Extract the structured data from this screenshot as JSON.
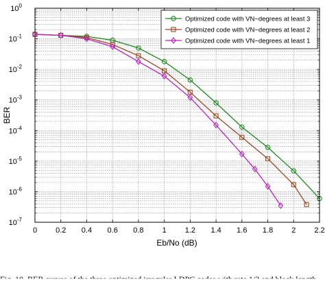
{
  "chart_data": {
    "type": "line",
    "title": "",
    "xlabel": "Eb/No (dB)",
    "ylabel": "BER",
    "xlim": [
      0,
      2.2
    ],
    "ylim": [
      1e-07,
      1
    ],
    "yscale": "log",
    "grid": true,
    "legend_position": "top-right",
    "x_ticks": [
      "0",
      "0.2",
      "0.4",
      "0.6",
      "0.8",
      "1",
      "1.2",
      "1.4",
      "1.6",
      "1.8",
      "2",
      "2.2"
    ],
    "y_ticks": [
      {
        "base": "10",
        "exp": "0"
      },
      {
        "base": "10",
        "exp": "-1"
      },
      {
        "base": "10",
        "exp": "-2"
      },
      {
        "base": "10",
        "exp": "-3"
      },
      {
        "base": "10",
        "exp": "-4"
      },
      {
        "base": "10",
        "exp": "-5"
      },
      {
        "base": "10",
        "exp": "-6"
      },
      {
        "base": "10",
        "exp": "-7"
      }
    ],
    "series": [
      {
        "name": "Optimized code with VN−degrees at least 3",
        "color": "#1a8a1a",
        "marker": "circle",
        "x": [
          0,
          0.2,
          0.4,
          0.6,
          0.8,
          1.0,
          1.2,
          1.4,
          1.6,
          1.8,
          2.0,
          2.2
        ],
        "y": [
          0.14,
          0.13,
          0.12,
          0.09,
          0.05,
          0.018,
          0.0045,
          0.0008,
          0.00013,
          2.8e-05,
          4.8e-06,
          6e-07
        ]
      },
      {
        "name": "Optimized code with VN−degrees at least 2",
        "color": "#a0461e",
        "marker": "square",
        "x": [
          0,
          0.2,
          0.4,
          0.6,
          0.8,
          1.0,
          1.2,
          1.4,
          1.6,
          1.8,
          2.0,
          2.1
        ],
        "y": [
          0.14,
          0.13,
          0.11,
          0.065,
          0.028,
          0.009,
          0.0018,
          0.0003,
          6e-05,
          1.2e-05,
          1.7e-06,
          3.8e-07
        ]
      },
      {
        "name": "Optimized code with VN−degrees at least 1",
        "color": "#c020c0",
        "marker": "diamond",
        "x": [
          0,
          0.2,
          0.4,
          0.6,
          0.8,
          1.0,
          1.2,
          1.4,
          1.6,
          1.7,
          1.8,
          1.9
        ],
        "y": [
          0.14,
          0.13,
          0.1,
          0.055,
          0.018,
          0.006,
          0.0012,
          0.00015,
          1.7e-05,
          5.5e-06,
          1.5e-06,
          3.5e-07
        ]
      }
    ]
  },
  "caption": "Fig. 10.  BER curves of the three optimized irregular LDPC codes with rate 1/2 and block length"
}
